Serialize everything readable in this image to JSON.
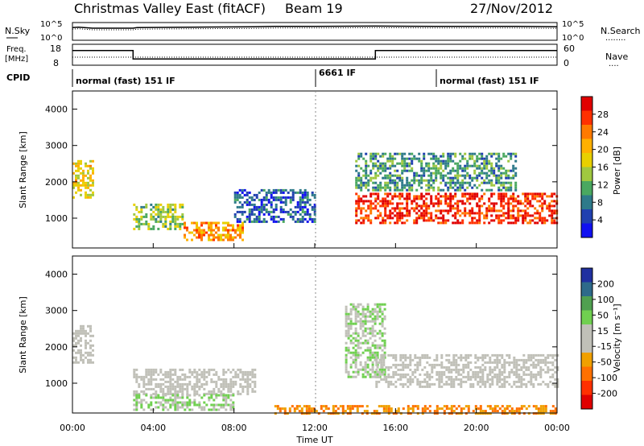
{
  "header": {
    "station": "Christmas Valley East (fitACF)",
    "beam": "Beam 19",
    "date": "27/Nov/2012"
  },
  "strip1": {
    "left_label": "N.Sky",
    "left_ticks": [
      "10^5",
      "10^0"
    ],
    "right_ticks": [
      "10^5",
      "10^0"
    ],
    "right_label": "N.Search",
    "right_legend": "........"
  },
  "strip2": {
    "left_label_1": "Freq.",
    "left_label_2": "[MHz]",
    "left_ticks": [
      "18",
      "8"
    ],
    "right_ticks": [
      "60",
      "0"
    ],
    "right_label": "Nave",
    "right_legend": "...."
  },
  "cpid": {
    "label": "CPID",
    "segments": [
      {
        "text": "normal (fast) 151 IF",
        "start_h": 0
      },
      {
        "text": "6661 IF",
        "start_h": 12
      },
      {
        "text": "normal (fast) 151 IF",
        "start_h": 18
      }
    ]
  },
  "axes": {
    "ylabel": "Slant Range [km]",
    "yticks": [
      "1000",
      "2000",
      "3000",
      "4000"
    ],
    "xticks": [
      "00:00",
      "04:00",
      "08:00",
      "12:00",
      "16:00",
      "20:00",
      "00:00"
    ],
    "xlabel": "Time UT"
  },
  "colorbar_power": {
    "label": "Power [dB]",
    "ticks": [
      "28",
      "24",
      "20",
      "16",
      "12",
      "8",
      "4"
    ],
    "colors": [
      "#e00000",
      "#ff3000",
      "#ff7a00",
      "#ffb000",
      "#e8d000",
      "#a0c840",
      "#4aa860",
      "#2e7a8a",
      "#2040b0",
      "#1010f0"
    ]
  },
  "colorbar_velocity": {
    "label": "Velocity [m s⁻¹]",
    "ticks": [
      "200",
      "100",
      "50",
      "15",
      "-15",
      "-50",
      "-100",
      "-200"
    ],
    "colors": [
      "#2030a0",
      "#2e6a8a",
      "#50a050",
      "#70d050",
      "#c0c0b8",
      "#c0c0b8",
      "#f0a000",
      "#ff7000",
      "#ff3000",
      "#e00000"
    ]
  },
  "chart_data": {
    "type": "heatmap",
    "title": "Christmas Valley East (fitACF) Beam 19 27/Nov/2012",
    "xlabel": "Time UT",
    "ylabel": "Slant Range [km]",
    "xlim_hours": [
      0,
      24
    ],
    "ylim_km": [
      180,
      4500
    ],
    "n_sky_series": {
      "name": "N.Sky",
      "x_hours": [
        0,
        0.3,
        1,
        3,
        3.2,
        6,
        9,
        10,
        12,
        15,
        18,
        22,
        24
      ],
      "values_log10": [
        3.6,
        3.7,
        3.4,
        3.4,
        3.6,
        3.7,
        3.8,
        3.9,
        3.9,
        4.0,
        3.9,
        3.9,
        3.8
      ]
    },
    "freq_series": {
      "name": "Freq.",
      "x_hours": [
        0,
        3,
        3,
        15,
        15,
        24
      ],
      "values_mhz": [
        15,
        15,
        11,
        11,
        15,
        15
      ]
    },
    "power_regions": [
      {
        "t_start": 0.0,
        "t_end": 1.0,
        "r_min": 1600,
        "r_max": 2600,
        "db": 18
      },
      {
        "t_start": 3.0,
        "t_end": 5.5,
        "r_min": 700,
        "r_max": 1400,
        "db": 14
      },
      {
        "t_start": 5.5,
        "t_end": 8.5,
        "r_min": 400,
        "r_max": 900,
        "db": 22
      },
      {
        "t_start": 8.0,
        "t_end": 12.0,
        "r_min": 900,
        "r_max": 1800,
        "db": 6
      },
      {
        "t_start": 14.0,
        "t_end": 24.0,
        "r_min": 900,
        "r_max": 1700,
        "db": 28
      },
      {
        "t_start": 14.0,
        "t_end": 22.0,
        "r_min": 1800,
        "r_max": 2800,
        "db": 10
      }
    ],
    "velocity_regions": [
      {
        "t_start": 0.0,
        "t_end": 1.0,
        "r_min": 1600,
        "r_max": 2600,
        "ms": 0
      },
      {
        "t_start": 3.0,
        "t_end": 9.0,
        "r_min": 700,
        "r_max": 1400,
        "ms": 0
      },
      {
        "t_start": 3.0,
        "t_end": 8.0,
        "r_min": 300,
        "r_max": 700,
        "ms": 40
      },
      {
        "t_start": 13.5,
        "t_end": 15.5,
        "r_min": 1200,
        "r_max": 3200,
        "ms": 40
      },
      {
        "t_start": 15.0,
        "t_end": 24.0,
        "r_min": 900,
        "r_max": 1800,
        "ms": 0
      },
      {
        "t_start": 10.0,
        "t_end": 24.0,
        "r_min": 180,
        "r_max": 400,
        "ms": -80
      }
    ]
  }
}
